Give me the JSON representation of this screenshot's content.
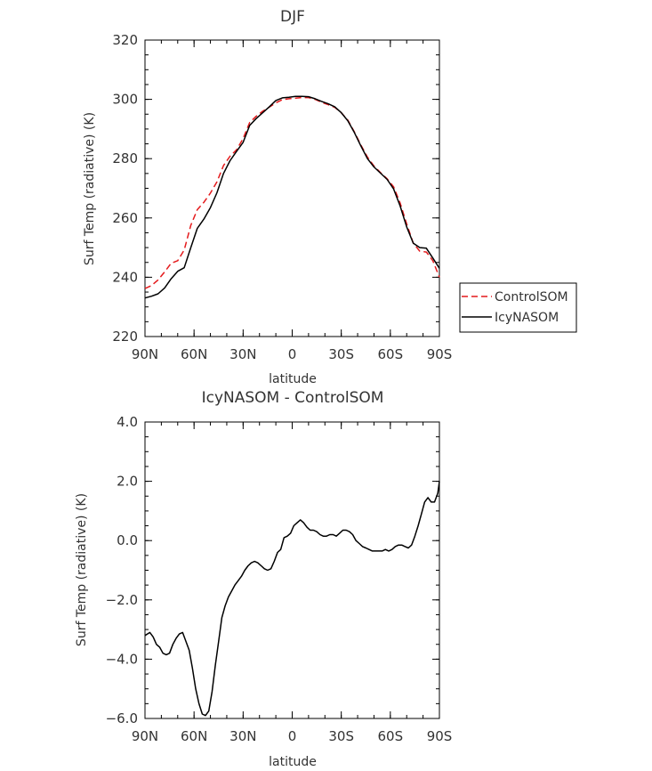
{
  "chart_data": [
    {
      "type": "line",
      "title": "DJF",
      "xlabel": "latitude",
      "ylabel": "Surf Temp (radiative) (K)",
      "xlim": [
        90,
        -90
      ],
      "ylim": [
        220,
        320
      ],
      "yticks": [
        220,
        240,
        260,
        280,
        300,
        320
      ],
      "yticklabels": [
        "220",
        "240",
        "260",
        "280",
        "300",
        "320"
      ],
      "xticks": [
        90,
        60,
        30,
        0,
        -30,
        -60,
        -90
      ],
      "xticklabels": [
        "90N",
        "60N",
        "30N",
        "0",
        "30S",
        "60S",
        "90S"
      ],
      "legend_position": "right",
      "grid": false,
      "series": [
        {
          "name": "ControlSOM",
          "color": "#e41a1c",
          "dash": true,
          "x": [
            90,
            86,
            82,
            78,
            74,
            70,
            66,
            62,
            58,
            54,
            50,
            46,
            42,
            38,
            34,
            30,
            26,
            22,
            18,
            14,
            10,
            6,
            2,
            -2,
            -6,
            -10,
            -14,
            -18,
            -22,
            -26,
            -30,
            -34,
            -38,
            -42,
            -46,
            -50,
            -54,
            -58,
            -62,
            -66,
            -70,
            -74,
            -78,
            -82,
            -86,
            -90
          ],
          "y": [
            236.2,
            237.2,
            239.1,
            241.8,
            244.7,
            245.6,
            249.2,
            257.5,
            262.8,
            265.3,
            268.4,
            272.2,
            277.7,
            280.8,
            283.0,
            286.8,
            292.2,
            294.3,
            296.0,
            297.4,
            298.8,
            299.9,
            300.2,
            300.4,
            300.6,
            300.6,
            300.0,
            299.0,
            298.2,
            297.3,
            295.5,
            293.0,
            289.0,
            284.6,
            280.5,
            277.5,
            275.3,
            273.2,
            270.5,
            265.0,
            258.0,
            251.5,
            248.8,
            248.5,
            245.6,
            240.0
          ]
        },
        {
          "name": "IcyNASOM",
          "color": "#000000",
          "dash": false,
          "x": [
            90,
            86,
            82,
            78,
            74,
            70,
            66,
            62,
            58,
            54,
            50,
            46,
            42,
            38,
            34,
            30,
            26,
            22,
            18,
            14,
            10,
            6,
            2,
            -2,
            -6,
            -10,
            -14,
            -18,
            -22,
            -26,
            -30,
            -34,
            -38,
            -42,
            -46,
            -50,
            -54,
            -58,
            -62,
            -66,
            -70,
            -74,
            -78,
            -82,
            -86,
            -90
          ],
          "y": [
            233.0,
            233.6,
            234.4,
            236.4,
            239.5,
            242.0,
            243.2,
            250.0,
            256.5,
            259.6,
            263.5,
            268.5,
            275.0,
            279.3,
            282.5,
            285.5,
            291.2,
            293.5,
            295.5,
            297.5,
            299.6,
            300.5,
            300.7,
            301.0,
            301.0,
            300.9,
            300.2,
            299.3,
            298.5,
            297.5,
            295.5,
            292.8,
            288.8,
            284.3,
            280.0,
            277.2,
            275.1,
            273.0,
            269.8,
            264.0,
            257.0,
            251.5,
            250.0,
            249.8,
            246.5,
            243.0
          ]
        }
      ]
    },
    {
      "type": "line",
      "title": "IcyNASOM - ControlSOM",
      "xlabel": "latitude",
      "ylabel": "Surf Temp (radiative) (K)",
      "xlim": [
        90,
        -90
      ],
      "ylim": [
        -6.0,
        4.0
      ],
      "yticks": [
        -6,
        -4,
        -2,
        0,
        2,
        4
      ],
      "yticklabels": [
        "-6.0",
        "-4.0",
        "-2.0",
        "0.0",
        "2.0",
        "4.0"
      ],
      "xticks": [
        90,
        60,
        30,
        0,
        -30,
        -60,
        -90
      ],
      "xticklabels": [
        "90N",
        "60N",
        "30N",
        "0",
        "30S",
        "60S",
        "90S"
      ],
      "grid": false,
      "series": [
        {
          "color": "#000000",
          "dash": false,
          "x": [
            90,
            87,
            85,
            83,
            81,
            79,
            77,
            75,
            73,
            71,
            69,
            67,
            65,
            63,
            61,
            59,
            57,
            55,
            53,
            51,
            49,
            47,
            45,
            43,
            41,
            39,
            37,
            35,
            33,
            31,
            29,
            27,
            25,
            23,
            21,
            19,
            17,
            15,
            13,
            11,
            9,
            7,
            5,
            3,
            1,
            -1,
            -3,
            -5,
            -7,
            -9,
            -11,
            -13,
            -15,
            -17,
            -19,
            -21,
            -23,
            -25,
            -27,
            -29,
            -31,
            -33,
            -35,
            -37,
            -39,
            -41,
            -43,
            -45,
            -47,
            -49,
            -51,
            -53,
            -55,
            -57,
            -59,
            -61,
            -63,
            -65,
            -67,
            -69,
            -71,
            -73,
            -75,
            -77,
            -79,
            -81,
            -83,
            -85,
            -87,
            -89,
            -90
          ],
          "y": [
            -3.2,
            -3.1,
            -3.25,
            -3.5,
            -3.6,
            -3.8,
            -3.85,
            -3.8,
            -3.5,
            -3.3,
            -3.15,
            -3.1,
            -3.4,
            -3.7,
            -4.3,
            -5.0,
            -5.5,
            -5.85,
            -5.9,
            -5.75,
            -5.1,
            -4.2,
            -3.4,
            -2.6,
            -2.2,
            -1.9,
            -1.7,
            -1.5,
            -1.35,
            -1.2,
            -1.0,
            -0.85,
            -0.75,
            -0.7,
            -0.75,
            -0.85,
            -0.95,
            -1.0,
            -0.95,
            -0.7,
            -0.4,
            -0.3,
            0.1,
            0.15,
            0.25,
            0.5,
            0.6,
            0.7,
            0.6,
            0.45,
            0.35,
            0.35,
            0.3,
            0.2,
            0.15,
            0.15,
            0.2,
            0.2,
            0.15,
            0.25,
            0.35,
            0.35,
            0.3,
            0.2,
            0.0,
            -0.1,
            -0.2,
            -0.25,
            -0.3,
            -0.35,
            -0.35,
            -0.35,
            -0.35,
            -0.3,
            -0.35,
            -0.3,
            -0.2,
            -0.15,
            -0.15,
            -0.2,
            -0.25,
            -0.15,
            0.15,
            0.5,
            0.9,
            1.3,
            1.45,
            1.3,
            1.3,
            1.6,
            2.0
          ]
        }
      ]
    }
  ]
}
